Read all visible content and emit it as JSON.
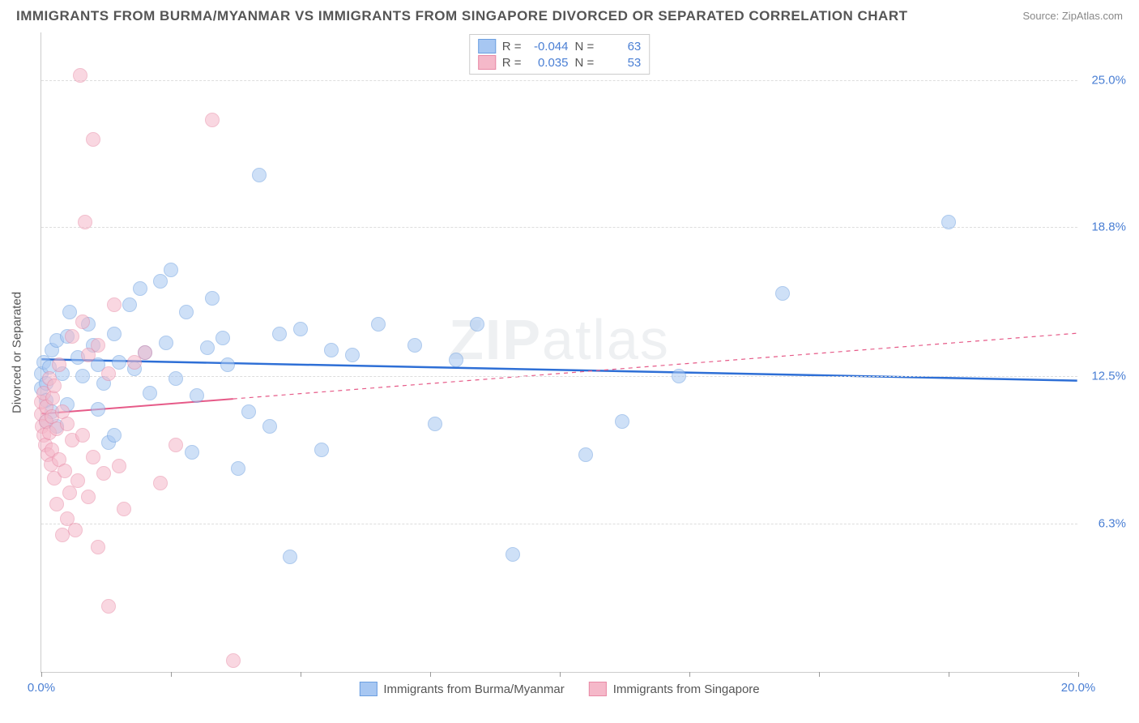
{
  "title": "IMMIGRANTS FROM BURMA/MYANMAR VS IMMIGRANTS FROM SINGAPORE DIVORCED OR SEPARATED CORRELATION CHART",
  "source_label": "Source: ZipAtlas.com",
  "watermark": "ZIPatlas",
  "yaxis_label": "Divorced or Separated",
  "axis": {
    "xlim": [
      0,
      20
    ],
    "ylim": [
      0,
      27
    ],
    "xticks_labeled": [
      {
        "val": 0.0,
        "label": "0.0%"
      },
      {
        "val": 20.0,
        "label": "20.0%"
      }
    ],
    "xticks_minor": [
      0,
      2.5,
      5,
      7.5,
      10,
      12.5,
      15,
      17.5,
      20
    ],
    "yticks": [
      {
        "val": 6.3,
        "label": "6.3%"
      },
      {
        "val": 12.5,
        "label": "12.5%"
      },
      {
        "val": 18.8,
        "label": "18.8%"
      },
      {
        "val": 25.0,
        "label": "25.0%"
      }
    ],
    "label_color": "#4a7fd4",
    "label_fontsize": 15,
    "grid_color": "#dddddd"
  },
  "series": [
    {
      "name": "Immigrants from Burma/Myanmar",
      "color_fill": "#a7c7f2",
      "color_stroke": "#6c9fe0",
      "fill_opacity": 0.55,
      "marker_radius": 9,
      "R": "-0.044",
      "N": "63",
      "trend": {
        "y_at_x0": 13.2,
        "y_at_x20": 12.3,
        "solid_end_x": 20,
        "line_color": "#2e6fd6",
        "line_width": 2.5
      },
      "points": [
        [
          0.0,
          12.6
        ],
        [
          0.0,
          12.0
        ],
        [
          0.05,
          13.1
        ],
        [
          0.1,
          11.5
        ],
        [
          0.1,
          12.2
        ],
        [
          0.1,
          10.6
        ],
        [
          0.15,
          12.9
        ],
        [
          0.2,
          11.0
        ],
        [
          0.2,
          13.6
        ],
        [
          0.3,
          14.0
        ],
        [
          0.3,
          10.4
        ],
        [
          0.4,
          12.6
        ],
        [
          0.5,
          14.2
        ],
        [
          0.5,
          11.3
        ],
        [
          0.55,
          15.2
        ],
        [
          0.7,
          13.3
        ],
        [
          0.8,
          12.5
        ],
        [
          0.9,
          14.7
        ],
        [
          1.0,
          13.8
        ],
        [
          1.1,
          13.0
        ],
        [
          1.1,
          11.1
        ],
        [
          1.2,
          12.2
        ],
        [
          1.3,
          9.7
        ],
        [
          1.4,
          14.3
        ],
        [
          1.4,
          10.0
        ],
        [
          1.5,
          13.1
        ],
        [
          1.7,
          15.5
        ],
        [
          1.8,
          12.8
        ],
        [
          1.9,
          16.2
        ],
        [
          2.0,
          13.5
        ],
        [
          2.1,
          11.8
        ],
        [
          2.3,
          16.5
        ],
        [
          2.4,
          13.9
        ],
        [
          2.5,
          17.0
        ],
        [
          2.6,
          12.4
        ],
        [
          2.8,
          15.2
        ],
        [
          2.9,
          9.3
        ],
        [
          3.0,
          11.7
        ],
        [
          3.2,
          13.7
        ],
        [
          3.3,
          15.8
        ],
        [
          3.5,
          14.1
        ],
        [
          3.6,
          13.0
        ],
        [
          3.8,
          8.6
        ],
        [
          4.0,
          11.0
        ],
        [
          4.2,
          21.0
        ],
        [
          4.4,
          10.4
        ],
        [
          4.6,
          14.3
        ],
        [
          4.8,
          4.9
        ],
        [
          5.0,
          14.5
        ],
        [
          5.4,
          9.4
        ],
        [
          5.6,
          13.6
        ],
        [
          6.0,
          13.4
        ],
        [
          6.5,
          14.7
        ],
        [
          7.2,
          13.8
        ],
        [
          7.6,
          10.5
        ],
        [
          8.0,
          13.2
        ],
        [
          8.4,
          14.7
        ],
        [
          9.1,
          5.0
        ],
        [
          10.5,
          9.2
        ],
        [
          11.2,
          10.6
        ],
        [
          12.3,
          12.5
        ],
        [
          14.3,
          16.0
        ],
        [
          17.5,
          19.0
        ]
      ]
    },
    {
      "name": "Immigrants from Singapore",
      "color_fill": "#f5b8c9",
      "color_stroke": "#e88aa6",
      "fill_opacity": 0.55,
      "marker_radius": 9,
      "R": "0.035",
      "N": "53",
      "trend": {
        "y_at_x0": 10.9,
        "y_at_x20": 14.3,
        "solid_end_x": 3.7,
        "line_color": "#e65a88",
        "line_width": 2
      },
      "points": [
        [
          0.0,
          10.9
        ],
        [
          0.0,
          11.4
        ],
        [
          0.02,
          10.4
        ],
        [
          0.05,
          10.0
        ],
        [
          0.05,
          11.8
        ],
        [
          0.08,
          9.6
        ],
        [
          0.1,
          10.6
        ],
        [
          0.1,
          11.2
        ],
        [
          0.12,
          9.2
        ],
        [
          0.15,
          10.1
        ],
        [
          0.15,
          12.4
        ],
        [
          0.18,
          8.8
        ],
        [
          0.2,
          10.8
        ],
        [
          0.2,
          9.4
        ],
        [
          0.22,
          11.6
        ],
        [
          0.25,
          12.1
        ],
        [
          0.25,
          8.2
        ],
        [
          0.3,
          10.3
        ],
        [
          0.3,
          7.1
        ],
        [
          0.35,
          9.0
        ],
        [
          0.35,
          13.0
        ],
        [
          0.4,
          5.8
        ],
        [
          0.4,
          11.0
        ],
        [
          0.45,
          8.5
        ],
        [
          0.5,
          6.5
        ],
        [
          0.5,
          10.5
        ],
        [
          0.55,
          7.6
        ],
        [
          0.6,
          9.8
        ],
        [
          0.6,
          14.2
        ],
        [
          0.65,
          6.0
        ],
        [
          0.7,
          8.1
        ],
        [
          0.75,
          25.2
        ],
        [
          0.8,
          10.0
        ],
        [
          0.8,
          14.8
        ],
        [
          0.85,
          19.0
        ],
        [
          0.9,
          7.4
        ],
        [
          0.9,
          13.4
        ],
        [
          1.0,
          22.5
        ],
        [
          1.0,
          9.1
        ],
        [
          1.1,
          5.3
        ],
        [
          1.1,
          13.8
        ],
        [
          1.2,
          8.4
        ],
        [
          1.3,
          2.8
        ],
        [
          1.3,
          12.6
        ],
        [
          1.5,
          8.7
        ],
        [
          1.6,
          6.9
        ],
        [
          1.8,
          13.1
        ],
        [
          2.0,
          13.5
        ],
        [
          2.3,
          8.0
        ],
        [
          2.6,
          9.6
        ],
        [
          3.3,
          23.3
        ],
        [
          3.7,
          0.5
        ],
        [
          1.4,
          15.5
        ]
      ]
    }
  ],
  "legend_top": {
    "stat1_label": "R =",
    "stat2_label": "N ="
  },
  "background_color": "#ffffff"
}
